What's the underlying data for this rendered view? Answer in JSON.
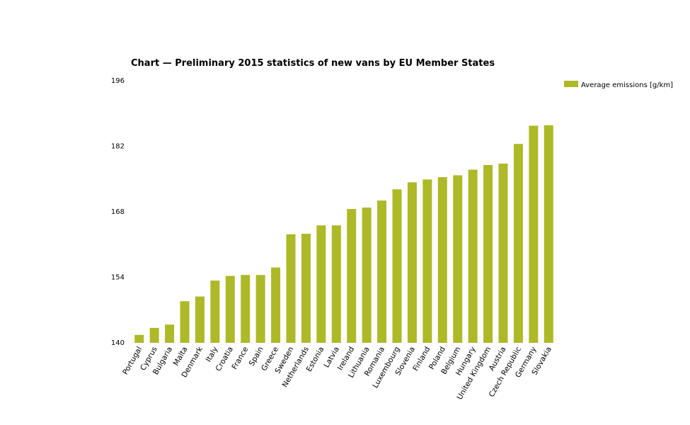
{
  "chart_data": {
    "type": "bar",
    "title": "Chart — Preliminary 2015 statistics of new vans by EU Member States",
    "xlabel": "",
    "ylabel": "",
    "ylim": [
      140,
      196
    ],
    "yticks": [
      140,
      154,
      168,
      182,
      196
    ],
    "bar_color": "#aeb927",
    "legend_position": "top-right",
    "categories": [
      "Portugal",
      "Cyprus",
      "Bulgaria",
      "Malta",
      "Denmark",
      "Italy",
      "Croatia",
      "France",
      "Spain",
      "Greece",
      "Sweden",
      "Netherlands",
      "Estonia",
      "Latvia",
      "Ireland",
      "Lithuania",
      "Romania",
      "Luxembourg",
      "Slovenia",
      "Finland",
      "Poland",
      "Belgium",
      "Hungary",
      "United Kingdom",
      "Austria",
      "Czech Republic",
      "Germany",
      "Slovakia"
    ],
    "series": [
      {
        "name": "Average emissions [g/km]",
        "values": [
          141.7,
          143.2,
          143.9,
          148.9,
          149.9,
          153.3,
          154.3,
          154.5,
          154.5,
          156.1,
          163.2,
          163.3,
          165.1,
          165.1,
          168.6,
          168.9,
          170.4,
          172.8,
          174.3,
          174.9,
          175.4,
          175.8,
          177.0,
          178.0,
          178.3,
          182.5,
          186.4,
          186.5
        ]
      }
    ]
  }
}
